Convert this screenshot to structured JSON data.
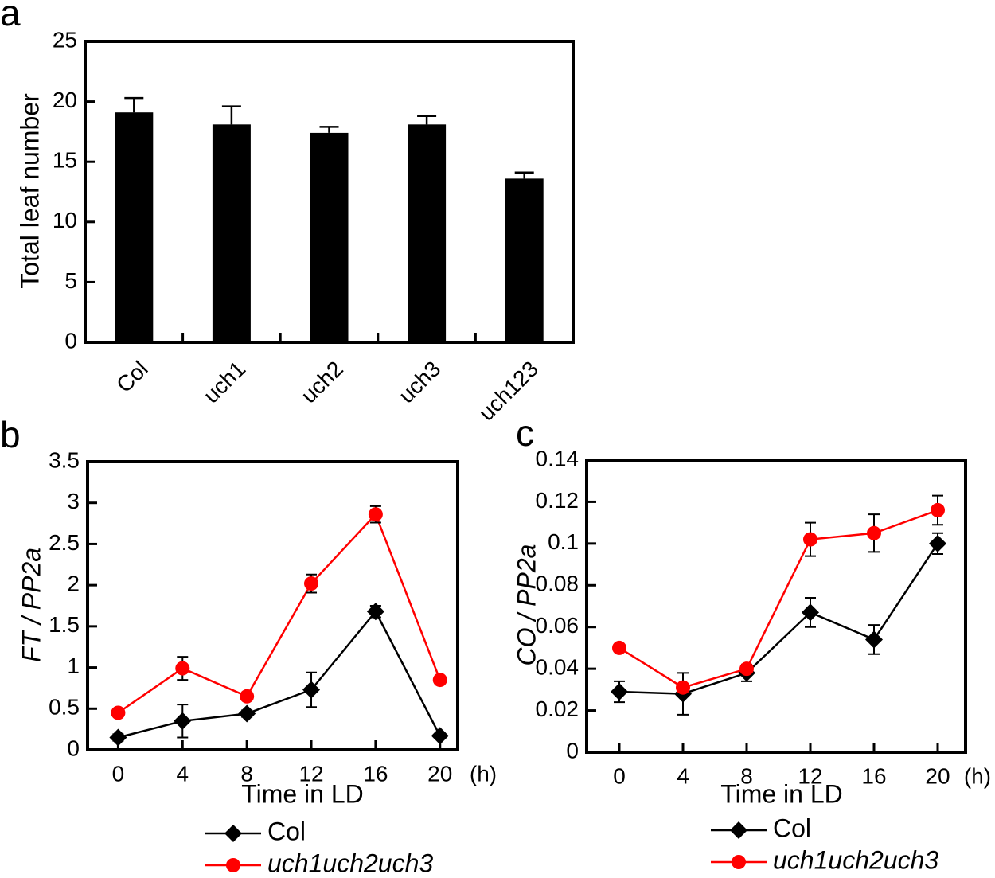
{
  "chart_data": [
    {
      "type": "bar",
      "panel_label": "a",
      "y_label": "Total leaf number",
      "categories": [
        "Col",
        "uch1",
        "uch2",
        "uch3",
        "uch123"
      ],
      "values": [
        19.1,
        18.1,
        17.4,
        18.1,
        13.6
      ],
      "errors": [
        1.2,
        1.5,
        0.5,
        0.7,
        0.5
      ],
      "color": "#000000",
      "ylim": [
        0,
        25
      ],
      "yticks": [
        0,
        5,
        10,
        15,
        20,
        25
      ]
    },
    {
      "type": "line",
      "panel_label": "b",
      "y_label": "FT / PP2a",
      "x_label": "Time in LD",
      "x_unit": "(h)",
      "x": [
        0,
        4,
        8,
        12,
        16,
        20
      ],
      "xlim": [
        -1.9,
        21.1
      ],
      "xticks": [
        0,
        4,
        8,
        12,
        16,
        20
      ],
      "ylim": [
        0,
        3.5
      ],
      "yticks": [
        0,
        0.5,
        1,
        1.5,
        2,
        2.5,
        3,
        3.5
      ],
      "series": [
        {
          "name": "Col",
          "color": "#000000",
          "marker": "diamond",
          "values": [
            0.15,
            0.35,
            0.44,
            0.73,
            1.68,
            0.17
          ],
          "errors": [
            0.04,
            0.2,
            0.04,
            0.21,
            0.07,
            0.03
          ]
        },
        {
          "name": "uch1uch2uch3",
          "color": "#ff0000",
          "marker": "circle",
          "values": [
            0.45,
            0.99,
            0.65,
            2.02,
            2.86,
            0.85
          ],
          "errors": [
            0.04,
            0.14,
            0.03,
            0.11,
            0.1,
            0.01
          ]
        }
      ]
    },
    {
      "type": "line",
      "panel_label": "c",
      "y_label": "CO / PP2a",
      "x_label": "Time in LD",
      "x_unit": "(h)",
      "x": [
        0,
        4,
        8,
        12,
        16,
        20
      ],
      "xlim": [
        -2.05,
        21.75
      ],
      "xticks": [
        0,
        4,
        8,
        12,
        16,
        20
      ],
      "ylim": [
        0,
        0.14
      ],
      "yticks": [
        0,
        0.02,
        0.04,
        0.06,
        0.08,
        0.1,
        0.12,
        0.14
      ],
      "series": [
        {
          "name": "Col",
          "color": "#000000",
          "marker": "diamond",
          "values": [
            0.029,
            0.028,
            0.038,
            0.067,
            0.054,
            0.1
          ],
          "errors": [
            0.005,
            0.01,
            0.004,
            0.007,
            0.007,
            0.005
          ]
        },
        {
          "name": "uch1uch2uch3",
          "color": "#ff0000",
          "marker": "circle",
          "values": [
            0.05,
            0.031,
            0.04,
            0.102,
            0.105,
            0.116
          ],
          "errors": [
            0.001,
            0.001,
            0.001,
            0.008,
            0.009,
            0.007
          ]
        }
      ]
    }
  ]
}
